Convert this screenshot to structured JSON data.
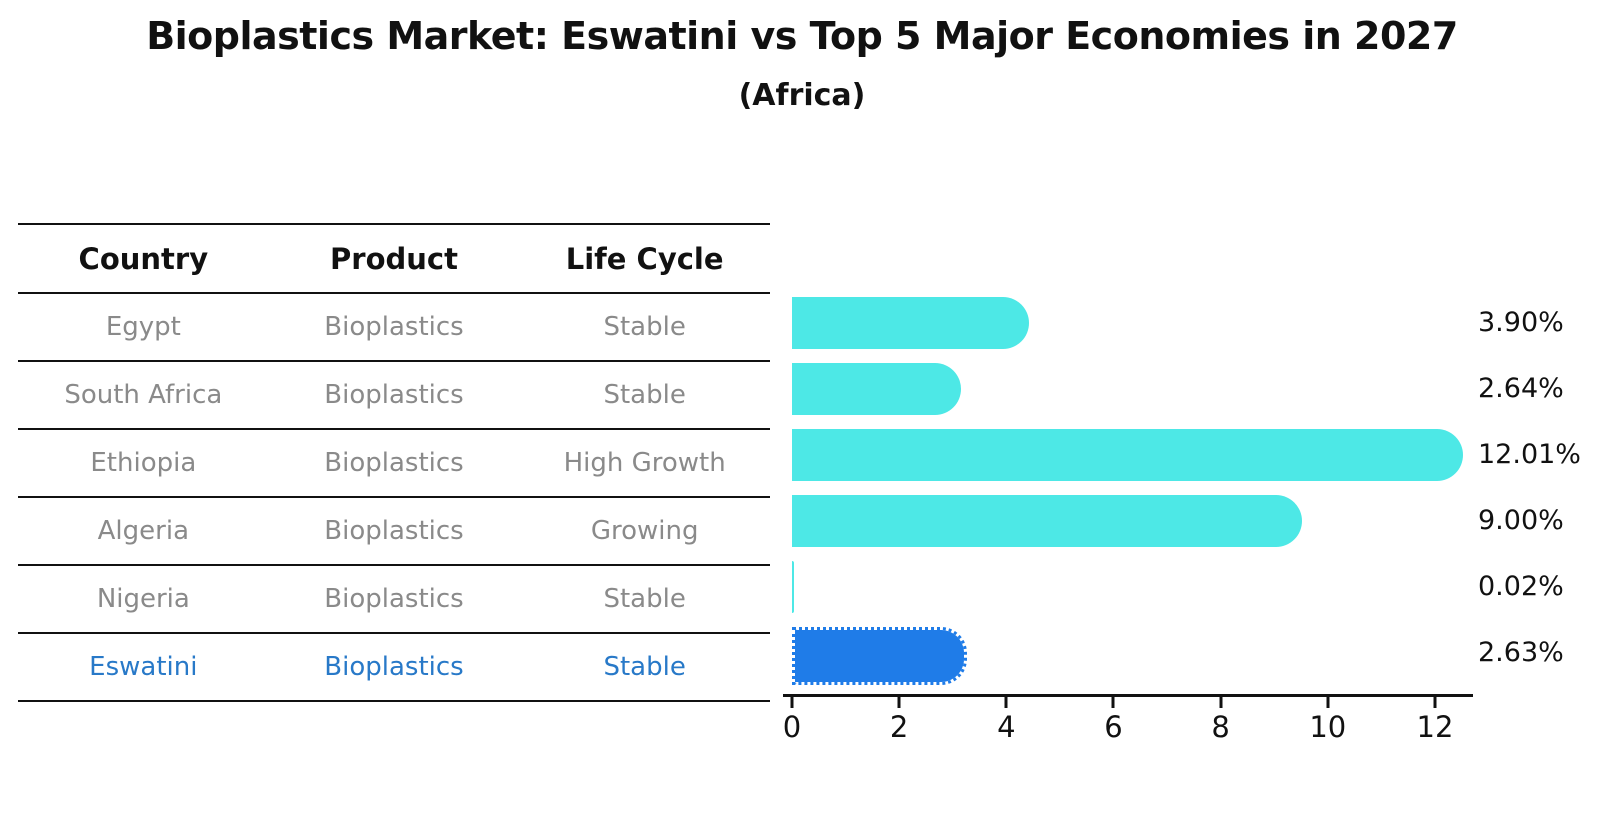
{
  "title": "Bioplastics Market: Eswatini vs Top 5 Major Economies in 2027",
  "subtitle": "(Africa)",
  "table": {
    "headers": [
      "Country",
      "Product",
      "Life Cycle"
    ],
    "rows": [
      {
        "country": "Egypt",
        "product": "Bioplastics",
        "life_cycle": "Stable",
        "highlight": false
      },
      {
        "country": "South Africa",
        "product": "Bioplastics",
        "life_cycle": "Stable",
        "highlight": false
      },
      {
        "country": "Ethiopia",
        "product": "Bioplastics",
        "life_cycle": "High Growth",
        "highlight": false
      },
      {
        "country": "Algeria",
        "product": "Bioplastics",
        "life_cycle": "Growing",
        "highlight": false
      },
      {
        "country": "Nigeria",
        "product": "Bioplastics",
        "life_cycle": "Stable",
        "highlight": false
      },
      {
        "country": "Eswatini",
        "product": "Bioplastics",
        "life_cycle": "Stable",
        "highlight": true
      }
    ]
  },
  "chart_data": {
    "type": "bar",
    "orientation": "horizontal",
    "title": "Bioplastics Market: Eswatini vs Top 5 Major Economies in 2027",
    "subtitle": "(Africa)",
    "categories": [
      "Egypt",
      "South Africa",
      "Ethiopia",
      "Algeria",
      "Nigeria",
      "Eswatini"
    ],
    "values": [
      3.9,
      2.64,
      12.01,
      9.0,
      0.02,
      2.63
    ],
    "value_labels": [
      "3.90%",
      "2.64%",
      "12.01%",
      "9.00%",
      "0.02%",
      "2.63%"
    ],
    "xticks": [
      0,
      2,
      4,
      6,
      8,
      10,
      12
    ],
    "xlim": [
      0,
      12.9
    ],
    "xlabel": "",
    "ylabel": "",
    "grid": false,
    "legend": false,
    "bar_color": "#4DE8E6",
    "highlight_color": "#1F7CE8",
    "highlight_index": 5,
    "highlight_bar_style": "dotted-border"
  },
  "colors": {
    "bar": "#4DE8E6",
    "highlight_bar": "#1F7CE8",
    "highlight_text": "#2879C8",
    "table_text": "#8a8a8a",
    "text": "#111111"
  }
}
